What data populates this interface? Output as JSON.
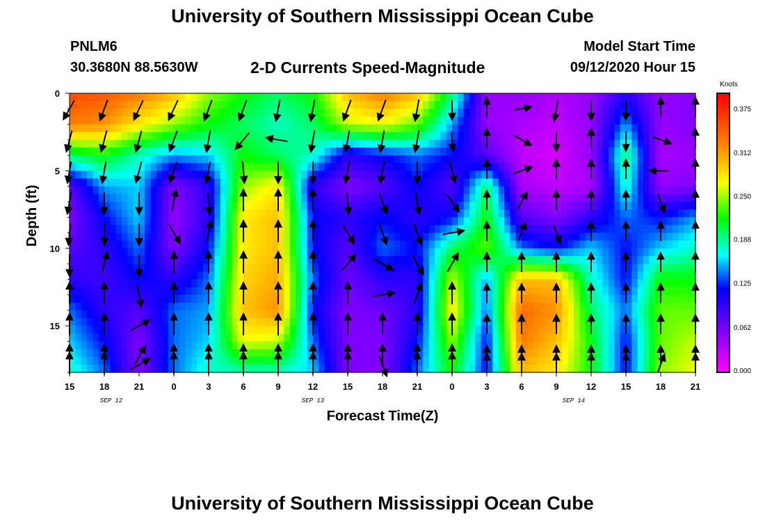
{
  "header": {
    "title": "University of Southern Mississippi Ocean Cube",
    "station_id": "PNLM6",
    "coordinates": "30.3680N 88.5630W",
    "product": "2-D Currents Speed-Magnitude",
    "model_start_label": "Model Start Time",
    "model_start_value": "09/12/2020 Hour 15"
  },
  "footer": {
    "title": "University of Southern Mississippi Ocean Cube"
  },
  "chart_data": {
    "type": "heatmap",
    "title": "2-D Currents Speed-Magnitude",
    "xlabel": "Forecast Time(Z)",
    "ylabel": "Depth (ft)",
    "x_hours": [
      0,
      3,
      6,
      9,
      12,
      15,
      18,
      21,
      24,
      27,
      30,
      33,
      36,
      39,
      42,
      45,
      48,
      51,
      54
    ],
    "x_tick_labels": [
      "15",
      "18",
      "21",
      "0",
      "3",
      "6",
      "9",
      "12",
      "15",
      "18",
      "21",
      "0",
      "3",
      "6",
      "9",
      "12",
      "15",
      "18",
      "21"
    ],
    "date_labels": [
      {
        "text": "SEP 12",
        "hour": 3.6
      },
      {
        "text": "SEP 13",
        "hour": 21.0
      },
      {
        "text": "SEP 14",
        "hour": 43.5
      }
    ],
    "x_range": [
      0,
      54
    ],
    "y_range": [
      0,
      18
    ],
    "y_ticks": [
      0,
      5,
      10,
      15
    ],
    "colorbar": {
      "unit": "Knots",
      "labels": [
        "0.375",
        "0.312",
        "0.250",
        "0.188",
        "0.125",
        "0.062",
        "0.000"
      ],
      "min": 0.0,
      "max": 0.4
    },
    "speed_grid_note": "speed values (knots) at depth rows 0..18 step 2 ft, columns every 3 h",
    "depth_rows": [
      0,
      2,
      4,
      6,
      8,
      10,
      12,
      14,
      16,
      18
    ],
    "speed": [
      [
        0.36,
        0.35,
        0.33,
        0.3,
        0.25,
        0.22,
        0.2,
        0.22,
        0.3,
        0.33,
        0.3,
        0.2,
        0.05,
        0.05,
        0.04,
        0.05,
        0.1,
        0.05,
        0.06
      ],
      [
        0.33,
        0.32,
        0.28,
        0.25,
        0.22,
        0.2,
        0.18,
        0.2,
        0.26,
        0.27,
        0.24,
        0.15,
        0.05,
        0.04,
        0.03,
        0.05,
        0.15,
        0.05,
        0.06
      ],
      [
        0.2,
        0.22,
        0.18,
        0.15,
        0.16,
        0.22,
        0.2,
        0.18,
        0.1,
        0.12,
        0.14,
        0.12,
        0.08,
        0.03,
        0.02,
        0.05,
        0.2,
        0.04,
        0.05
      ],
      [
        0.08,
        0.15,
        0.16,
        0.06,
        0.1,
        0.25,
        0.28,
        0.1,
        0.06,
        0.08,
        0.12,
        0.08,
        0.2,
        0.04,
        0.03,
        0.04,
        0.18,
        0.05,
        0.06
      ],
      [
        0.06,
        0.12,
        0.16,
        0.05,
        0.1,
        0.28,
        0.3,
        0.12,
        0.1,
        0.12,
        0.1,
        0.12,
        0.22,
        0.08,
        0.06,
        0.1,
        0.14,
        0.12,
        0.15
      ],
      [
        0.08,
        0.1,
        0.14,
        0.06,
        0.12,
        0.28,
        0.3,
        0.12,
        0.08,
        0.14,
        0.12,
        0.2,
        0.24,
        0.14,
        0.12,
        0.16,
        0.12,
        0.16,
        0.18
      ],
      [
        0.1,
        0.09,
        0.12,
        0.1,
        0.14,
        0.29,
        0.31,
        0.14,
        0.07,
        0.1,
        0.1,
        0.26,
        0.15,
        0.3,
        0.3,
        0.18,
        0.12,
        0.22,
        0.22
      ],
      [
        0.14,
        0.1,
        0.08,
        0.14,
        0.15,
        0.3,
        0.32,
        0.12,
        0.06,
        0.07,
        0.1,
        0.28,
        0.14,
        0.34,
        0.32,
        0.2,
        0.14,
        0.24,
        0.24
      ],
      [
        0.16,
        0.12,
        0.06,
        0.14,
        0.16,
        0.27,
        0.26,
        0.14,
        0.06,
        0.06,
        0.12,
        0.25,
        0.12,
        0.33,
        0.3,
        0.22,
        0.12,
        0.24,
        0.26
      ],
      [
        0.18,
        0.14,
        0.06,
        0.14,
        0.18,
        0.18,
        0.18,
        0.16,
        0.06,
        0.06,
        0.14,
        0.22,
        0.12,
        0.3,
        0.28,
        0.22,
        0.12,
        0.25,
        0.27
      ]
    ],
    "vectors": [
      [
        [
          210,
          0.8
        ],
        [
          200,
          0.8
        ],
        [
          205,
          0.8
        ],
        [
          205,
          0.8
        ],
        [
          200,
          0.8
        ],
        [
          200,
          0.8
        ],
        [
          190,
          0.8
        ],
        [
          190,
          0.8
        ],
        [
          200,
          0.8
        ],
        [
          200,
          0.8
        ],
        [
          190,
          0.8
        ],
        [
          180,
          0.7
        ],
        [
          0,
          0.7
        ],
        [
          80,
          0.6
        ],
        [
          190,
          0.8
        ],
        [
          180,
          0.7
        ],
        [
          180,
          0.7
        ],
        [
          0,
          0.7
        ],
        [
          0,
          0.7
        ]
      ],
      [
        [
          195,
          0.8
        ],
        [
          195,
          0.8
        ],
        [
          195,
          0.8
        ],
        [
          200,
          0.8
        ],
        [
          190,
          0.8
        ],
        [
          220,
          0.8
        ],
        [
          280,
          0.8
        ],
        [
          190,
          0.8
        ],
        [
          190,
          0.8
        ],
        [
          190,
          0.8
        ],
        [
          190,
          0.8
        ],
        [
          175,
          0.7
        ],
        [
          0,
          0.7
        ],
        [
          120,
          0.7
        ],
        [
          180,
          0.7
        ],
        [
          0,
          0.7
        ],
        [
          180,
          0.7
        ],
        [
          110,
          0.7
        ],
        [
          0,
          0.7
        ]
      ],
      [
        [
          190,
          0.8
        ],
        [
          190,
          0.8
        ],
        [
          195,
          0.8
        ],
        [
          200,
          0.8
        ],
        [
          190,
          0.8
        ],
        [
          175,
          0.8
        ],
        [
          180,
          0.8
        ],
        [
          180,
          0.8
        ],
        [
          190,
          0.8
        ],
        [
          190,
          0.8
        ],
        [
          180,
          0.8
        ],
        [
          165,
          0.8
        ],
        [
          0,
          0.7
        ],
        [
          70,
          0.7
        ],
        [
          0,
          0.7
        ],
        [
          0,
          0.7
        ],
        [
          0,
          0.7
        ],
        [
          270,
          0.7
        ],
        [
          0,
          0.7
        ]
      ],
      [
        [
          190,
          0.8
        ],
        [
          180,
          0.8
        ],
        [
          180,
          0.8
        ],
        [
          10,
          0.8
        ],
        [
          175,
          0.8
        ],
        [
          0,
          0.8
        ],
        [
          0,
          0.8
        ],
        [
          0,
          0.8
        ],
        [
          175,
          0.8
        ],
        [
          160,
          0.8
        ],
        [
          170,
          0.8
        ],
        [
          145,
          0.8
        ],
        [
          0,
          0.7
        ],
        [
          30,
          0.7
        ],
        [
          0,
          0.7
        ],
        [
          0,
          0.7
        ],
        [
          0,
          0.7
        ],
        [
          160,
          0.7
        ],
        [
          0,
          0.7
        ]
      ],
      [
        [
          185,
          0.8
        ],
        [
          180,
          0.8
        ],
        [
          180,
          0.8
        ],
        [
          150,
          0.8
        ],
        [
          10,
          0.8
        ],
        [
          0,
          0.8
        ],
        [
          0,
          0.8
        ],
        [
          0,
          0.8
        ],
        [
          150,
          0.8
        ],
        [
          160,
          0.8
        ],
        [
          160,
          0.8
        ],
        [
          80,
          0.8
        ],
        [
          0,
          0.7
        ],
        [
          20,
          0.7
        ],
        [
          160,
          0.7
        ],
        [
          0,
          0.7
        ],
        [
          0,
          0.7
        ],
        [
          0,
          0.7
        ],
        [
          0,
          0.7
        ]
      ],
      [
        [
          180,
          0.8
        ],
        [
          15,
          0.8
        ],
        [
          180,
          0.8
        ],
        [
          0,
          0.8
        ],
        [
          0,
          0.8
        ],
        [
          0,
          0.8
        ],
        [
          0,
          0.8
        ],
        [
          0,
          0.8
        ],
        [
          40,
          0.8
        ],
        [
          120,
          0.8
        ],
        [
          150,
          0.8
        ],
        [
          30,
          0.8
        ],
        [
          0,
          0.7
        ],
        [
          0,
          0.7
        ],
        [
          0,
          0.7
        ],
        [
          0,
          0.7
        ],
        [
          0,
          0.7
        ],
        [
          0,
          0.7
        ],
        [
          0,
          0.7
        ]
      ],
      [
        [
          0,
          0.8
        ],
        [
          0,
          0.8
        ],
        [
          170,
          0.8
        ],
        [
          0,
          0.8
        ],
        [
          0,
          0.8
        ],
        [
          0,
          0.8
        ],
        [
          0,
          0.8
        ],
        [
          0,
          0.8
        ],
        [
          0,
          0.8
        ],
        [
          80,
          0.8
        ],
        [
          20,
          0.8
        ],
        [
          0,
          0.8
        ],
        [
          0,
          0.7
        ],
        [
          0,
          0.7
        ],
        [
          0,
          0.7
        ],
        [
          0,
          0.7
        ],
        [
          0,
          0.7
        ],
        [
          0,
          0.7
        ],
        [
          0,
          0.7
        ]
      ],
      [
        [
          0,
          0.8
        ],
        [
          0,
          0.8
        ],
        [
          60,
          0.8
        ],
        [
          0,
          0.8
        ],
        [
          0,
          0.8
        ],
        [
          0,
          0.8
        ],
        [
          0,
          0.8
        ],
        [
          0,
          0.8
        ],
        [
          0,
          0.8
        ],
        [
          0,
          0.8
        ],
        [
          0,
          0.8
        ],
        [
          0,
          0.8
        ],
        [
          0,
          0.7
        ],
        [
          0,
          0.7
        ],
        [
          0,
          0.7
        ],
        [
          0,
          0.7
        ],
        [
          0,
          0.7
        ],
        [
          0,
          0.7
        ],
        [
          0,
          0.7
        ]
      ],
      [
        [
          0,
          0.8
        ],
        [
          0,
          0.8
        ],
        [
          30,
          0.8
        ],
        [
          0,
          0.8
        ],
        [
          0,
          0.8
        ],
        [
          0,
          0.8
        ],
        [
          0,
          0.8
        ],
        [
          0,
          0.8
        ],
        [
          0,
          0.8
        ],
        [
          0,
          0.8
        ],
        [
          0,
          0.8
        ],
        [
          0,
          0.8
        ],
        [
          0,
          0.7
        ],
        [
          0,
          0.7
        ],
        [
          0,
          0.7
        ],
        [
          0,
          0.7
        ],
        [
          0,
          0.7
        ],
        [
          0,
          0.7
        ],
        [
          0,
          0.7
        ]
      ],
      [
        [
          0,
          0.8
        ],
        [
          0,
          0.8
        ],
        [
          60,
          0.8
        ],
        [
          0,
          0.8
        ],
        [
          0,
          0.8
        ],
        [
          0,
          0.8
        ],
        [
          0,
          0.8
        ],
        [
          0,
          0.8
        ],
        [
          0,
          0.8
        ],
        [
          160,
          0.8
        ],
        [
          0,
          0.8
        ],
        [
          0,
          0.8
        ],
        [
          0,
          0.7
        ],
        [
          0,
          0.7
        ],
        [
          0,
          0.7
        ],
        [
          0,
          0.7
        ],
        [
          0,
          0.7
        ],
        [
          20,
          0.7
        ],
        [
          0,
          0.7
        ]
      ]
    ],
    "grid": false
  }
}
